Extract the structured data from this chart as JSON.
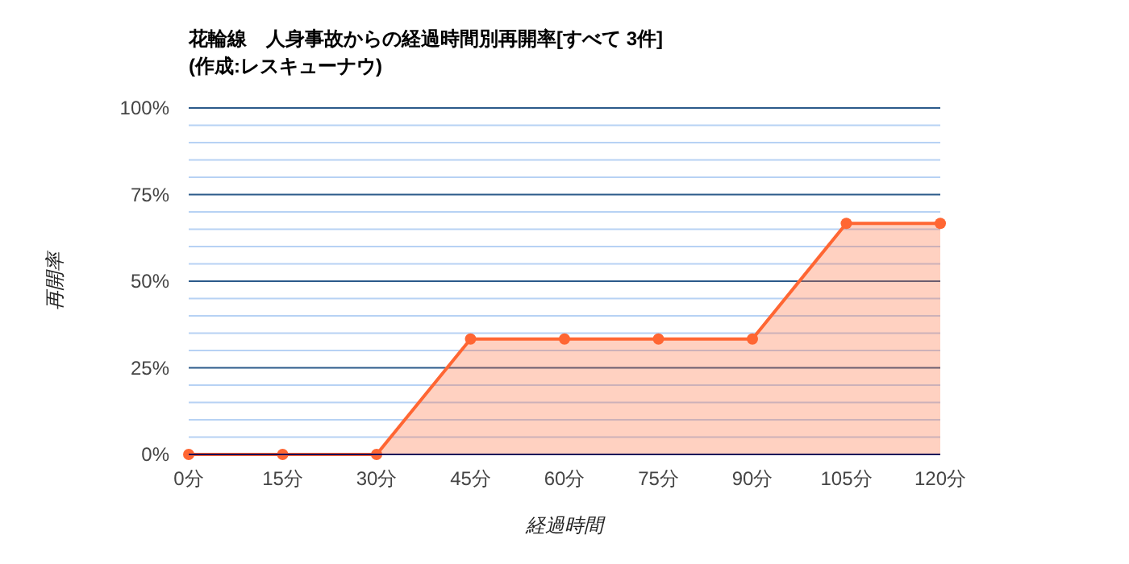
{
  "chart_data": {
    "type": "area",
    "title": "花輪線　人身事故からの経過時間別再開率[すべて 3件]\n(作成:レスキューナウ)",
    "xlabel": "経過時間",
    "ylabel": "再開率",
    "categories": [
      "0分",
      "15分",
      "30分",
      "45分",
      "60分",
      "75分",
      "90分",
      "105分",
      "120分"
    ],
    "series": [
      {
        "color": "#ff6633",
        "values": [
          0,
          0,
          0,
          33.3,
          33.3,
          33.3,
          33.3,
          66.7,
          66.7
        ]
      }
    ],
    "ylim": [
      0,
      100
    ],
    "yticks": [
      {
        "value": 0,
        "label": "0%"
      },
      {
        "value": 5,
        "label": null
      },
      {
        "value": 10,
        "label": null
      },
      {
        "value": 15,
        "label": null
      },
      {
        "value": 20,
        "label": null
      },
      {
        "value": 25,
        "label": "25%"
      },
      {
        "value": 30,
        "label": null
      },
      {
        "value": 35,
        "label": null
      },
      {
        "value": 40,
        "label": null
      },
      {
        "value": 45,
        "label": null
      },
      {
        "value": 50,
        "label": "50%"
      },
      {
        "value": 55,
        "label": null
      },
      {
        "value": 60,
        "label": null
      },
      {
        "value": 65,
        "label": null
      },
      {
        "value": 70,
        "label": null
      },
      {
        "value": 75,
        "label": "75%"
      },
      {
        "value": 80,
        "label": null
      },
      {
        "value": 85,
        "label": null
      },
      {
        "value": 90,
        "label": null
      },
      {
        "value": 95,
        "label": null
      },
      {
        "value": 100,
        "label": "100%"
      }
    ],
    "grid": "y",
    "marker": "circle",
    "line_style": "solid"
  }
}
